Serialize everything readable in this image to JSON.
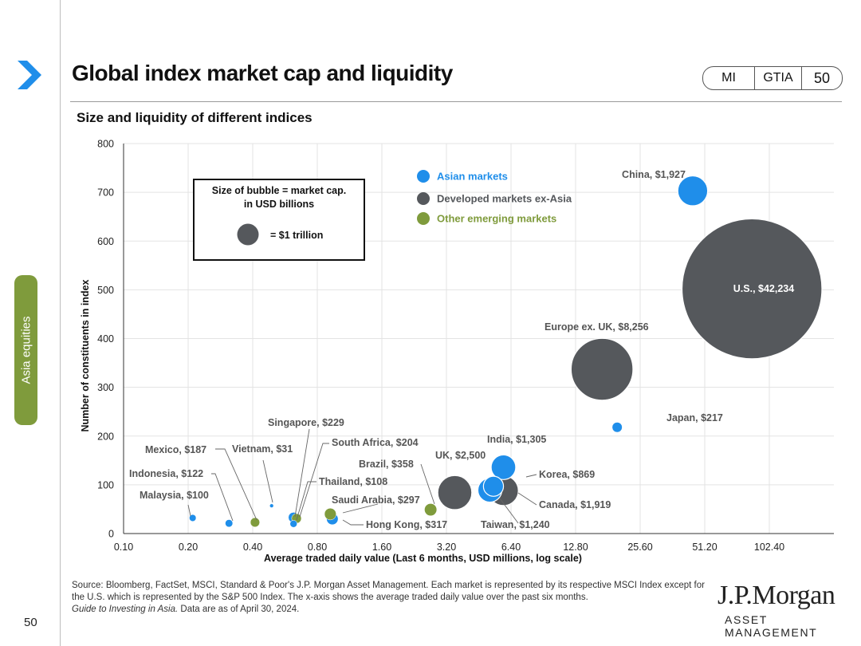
{
  "page": {
    "title": "Global index market cap and liquidity",
    "tags": [
      "MI",
      "GTIA",
      "50"
    ],
    "side_tab": "Asia equities",
    "page_number": "50",
    "source": "Source: Bloomberg, FactSet, MSCI, Standard & Poor's J.P. Morgan Asset Management. Each market is represented by its respective MSCI Index except for the U.S. which is represented by the S&P 500 Index. The x-axis shows the average traded daily value over the past six months.",
    "source_italic": "Guide to Investing in Asia.",
    "source_tail": " Data are as of April 30, 2024.",
    "logo_main": "J.P.Morgan",
    "logo_sub": "ASSET MANAGEMENT"
  },
  "chart_data": {
    "type": "scatter",
    "title": "Size and liquidity of different indices",
    "xlabel": "Average traded daily value (Last 6 months, USD millions, log scale)",
    "ylabel": "Number of constituents in index",
    "x_scale": "log2",
    "xlim": [
      0.1,
      204.8
    ],
    "ylim": [
      0,
      800
    ],
    "x_ticks": [
      "0.10",
      "0.20",
      "0.40",
      "0.80",
      "1.60",
      "3.20",
      "6.40",
      "12.80",
      "25.60",
      "51.20",
      "102.40"
    ],
    "y_ticks": [
      0,
      100,
      200,
      300,
      400,
      500,
      600,
      700,
      800
    ],
    "legend": [
      {
        "name": "Asian markets",
        "color": "#1f8eea"
      },
      {
        "name": "Developed markets ex-Asia",
        "color": "#55585c"
      },
      {
        "name": "Other emerging markets",
        "color": "#7f9b3c"
      }
    ],
    "bubble_key": {
      "line1": "Size of bubble = market cap.",
      "line2": "in USD billions",
      "label": "= $1 trillion",
      "value": 1000
    },
    "series": [
      {
        "name": "China",
        "label": "China, $1,927",
        "x": 45,
        "y": 703,
        "cap": 1927,
        "group": 0
      },
      {
        "name": "U.S.",
        "label": "U.S., $42,234",
        "x": 85,
        "y": 502,
        "cap": 42234,
        "group": 1
      },
      {
        "name": "Europe ex. UK",
        "label": "Europe ex. UK, $8,256",
        "x": 17,
        "y": 337,
        "cap": 8256,
        "group": 1
      },
      {
        "name": "Japan",
        "label": "Japan, $217",
        "x": 20,
        "y": 218,
        "cap": 217,
        "group": 0
      },
      {
        "name": "India",
        "label": "India, $1,305",
        "x": 5.9,
        "y": 136,
        "cap": 1305,
        "group": 0
      },
      {
        "name": "UK",
        "label": "UK, $2,500",
        "x": 3.5,
        "y": 84,
        "cap": 2500,
        "group": 1
      },
      {
        "name": "Korea",
        "label": "Korea, $869",
        "x": 5.3,
        "y": 97,
        "cap": 869,
        "group": 0
      },
      {
        "name": "Canada",
        "label": "Canada, $1,919",
        "x": 5.9,
        "y": 88,
        "cap": 1919,
        "group": 1
      },
      {
        "name": "Taiwan",
        "label": "Taiwan, $1,240",
        "x": 5.1,
        "y": 89,
        "cap": 1240,
        "group": 0
      },
      {
        "name": "Singapore",
        "label": "Singapore, $229",
        "x": 0.62,
        "y": 33,
        "cap": 229,
        "group": 0
      },
      {
        "name": "South Africa",
        "label": "South Africa, $204",
        "x": 0.64,
        "y": 31,
        "cap": 204,
        "group": 2
      },
      {
        "name": "Brazil",
        "label": "Brazil, $358",
        "x": 2.7,
        "y": 49,
        "cap": 358,
        "group": 2
      },
      {
        "name": "Thailand",
        "label": "Thailand, $108",
        "x": 0.62,
        "y": 20,
        "cap": 108,
        "group": 0
      },
      {
        "name": "Saudi Arabia",
        "label": "Saudi Arabia, $297",
        "x": 0.92,
        "y": 40,
        "cap": 297,
        "group": 2
      },
      {
        "name": "Hong Kong",
        "label": "Hong Kong, $317",
        "x": 0.94,
        "y": 30,
        "cap": 317,
        "group": 0
      },
      {
        "name": "Mexico",
        "label": "Mexico, $187",
        "x": 0.41,
        "y": 23,
        "cap": 187,
        "group": 2
      },
      {
        "name": "Vietnam",
        "label": "Vietnam, $31",
        "x": 0.49,
        "y": 57,
        "cap": 31,
        "group": 0
      },
      {
        "name": "Indonesia",
        "label": "Indonesia, $122",
        "x": 0.31,
        "y": 21,
        "cap": 122,
        "group": 0
      },
      {
        "name": "Malaysia",
        "label": "Malaysia, $100",
        "x": 0.21,
        "y": 32,
        "cap": 100,
        "group": 0
      }
    ]
  }
}
